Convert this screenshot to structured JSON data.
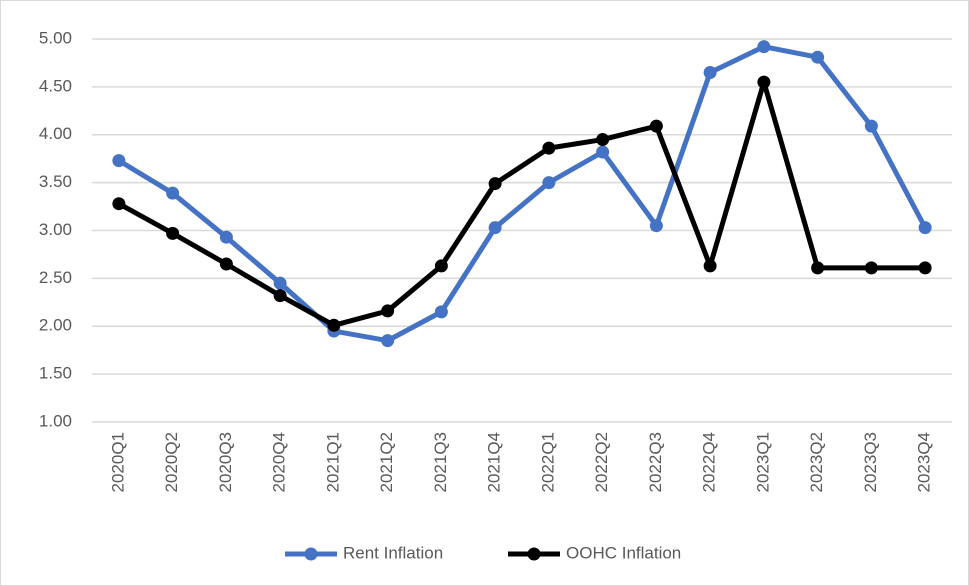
{
  "chart_data": {
    "type": "line",
    "categories": [
      "2020Q1",
      "2020Q2",
      "2020Q3",
      "2020Q4",
      "2021Q1",
      "2021Q2",
      "2021Q3",
      "2021Q4",
      "2022Q1",
      "2022Q2",
      "2022Q3",
      "2022Q4",
      "2023Q1",
      "2023Q2",
      "2023Q3",
      "2023Q4"
    ],
    "series": [
      {
        "name": "Rent Inflation",
        "color": "#4472c4",
        "values": [
          3.73,
          3.39,
          2.93,
          2.45,
          1.95,
          1.85,
          2.15,
          3.03,
          3.5,
          3.82,
          3.05,
          4.65,
          4.92,
          4.81,
          4.09,
          3.03
        ]
      },
      {
        "name": "OOHC Inflation",
        "color": "#000000",
        "values": [
          3.28,
          2.97,
          2.65,
          2.32,
          2.01,
          2.16,
          2.63,
          3.49,
          3.86,
          3.95,
          4.09,
          2.63,
          4.55,
          2.61,
          2.61,
          2.61
        ]
      }
    ],
    "ylim": [
      1,
      5
    ],
    "yticks": [
      {
        "value": 1,
        "label": "1.00"
      },
      {
        "value": 1.5,
        "label": "1.50"
      },
      {
        "value": 2,
        "label": "2.00"
      },
      {
        "value": 2.5,
        "label": "2.50"
      },
      {
        "value": 3,
        "label": "3.00"
      },
      {
        "value": 3.5,
        "label": "3.50"
      },
      {
        "value": 4,
        "label": "4.00"
      },
      {
        "value": 4.5,
        "label": "4.50"
      },
      {
        "value": 5,
        "label": "5.00"
      }
    ],
    "grid": true,
    "legend": "bottom"
  }
}
